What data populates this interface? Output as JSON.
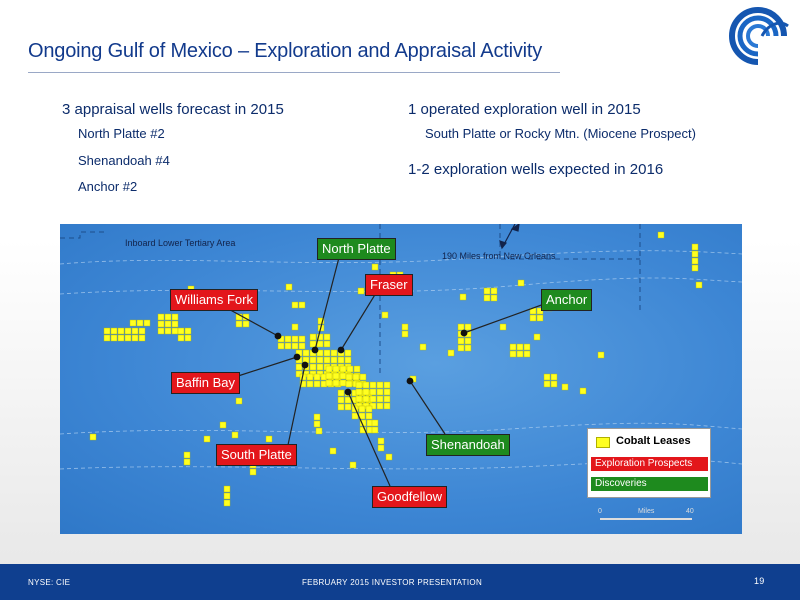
{
  "title": "Ongoing Gulf of Mexico – Exploration and Appraisal Activity",
  "left_column": {
    "heading": "3 appraisal wells forecast in 2015",
    "items": [
      "North Platte #2",
      "Shenandoah #4",
      "Anchor #2"
    ]
  },
  "right_column": {
    "heading1": "1 operated exploration well in 2015",
    "item1": "South Platte or Rocky Mtn. (Miocene Prospect)",
    "heading2": "1-2 exploration wells expected in 2016"
  },
  "map": {
    "labels": {
      "inboard": "Inboard Lower Tertiary Area",
      "distance": "190 Miles from New Orleans"
    },
    "callouts": {
      "north_platte": "North Platte",
      "fraser": "Fraser",
      "williams_fork": "Williams Fork",
      "anchor": "Anchor",
      "baffin_bay": "Baffin Bay",
      "south_platte": "South Platte",
      "shenandoah": "Shenandoah",
      "goodfellow": "Goodfellow"
    },
    "legend": {
      "leases": "Cobalt Leases",
      "exploration": "Exploration Prospects",
      "discoveries": "Discoveries"
    },
    "scale": {
      "start": "0",
      "unit": "Miles",
      "end": "40"
    },
    "colors": {
      "lease": "#ffff20",
      "exploration": "#e3161b",
      "discovery": "#1e8a1e",
      "water": "#3d86d4"
    }
  },
  "footer": {
    "left": "NYSE: CIE",
    "center": "FEBRUARY 2015 INVESTOR PRESENTATION",
    "page": "19"
  }
}
